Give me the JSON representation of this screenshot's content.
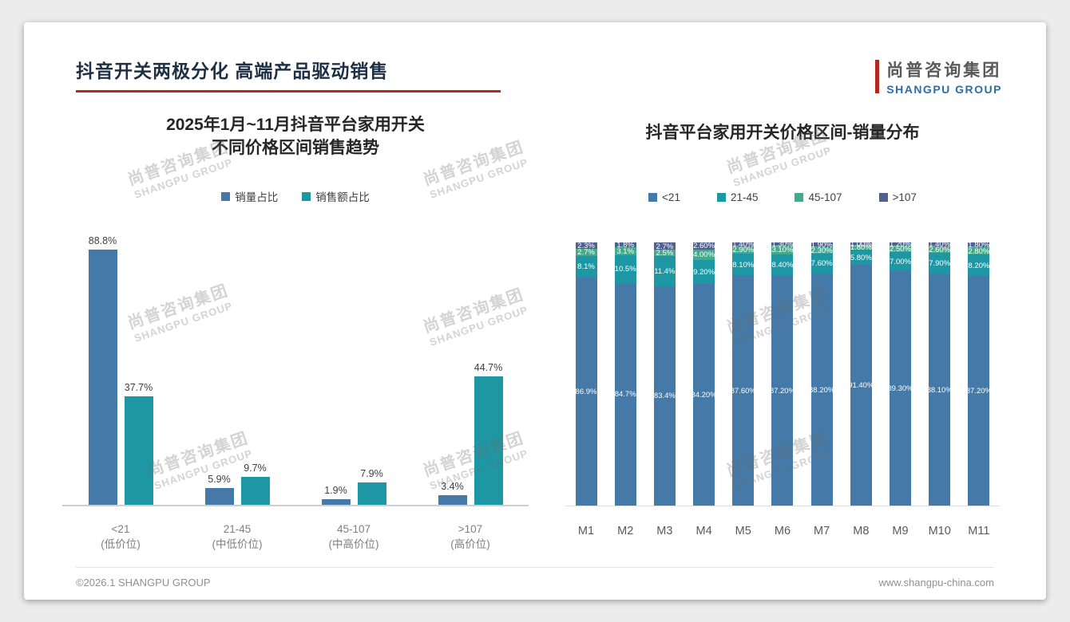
{
  "header": {
    "title": "抖音开关两极分化 高端产品驱动销售",
    "logo_cn": "尚普咨询集团",
    "logo_en": "SHANGPU GROUP"
  },
  "watermark": {
    "cn": "尚普咨询集团",
    "en": "SHANGPU GROUP"
  },
  "footer": {
    "left": "©2026.1 SHANGPU GROUP",
    "right": "www.shangpu-china.com"
  },
  "colors": {
    "accent_red": "#b02a1e",
    "logo_blue": "#2e6da4",
    "series_blue": "#4579a7",
    "series_teal": "#1e97a4",
    "series_green": "#45a98c",
    "series_navy": "#50618f"
  },
  "chart_data": [
    {
      "type": "bar",
      "title": "2025年1月~11月抖音平台家用开关 不同价格区间销售趋势",
      "title_line1": "2025年1月~11月抖音平台家用开关",
      "title_line2": "不同价格区间销售趋势",
      "xlabel": "",
      "ylabel": "",
      "ylim": [
        0,
        100
      ],
      "grid": false,
      "legend_position": "top",
      "categories": [
        {
          "line1": "<21",
          "line2": "(低价位)"
        },
        {
          "line1": "21-45",
          "line2": "(中低价位)"
        },
        {
          "line1": "45-107",
          "line2": "(中高价位)"
        },
        {
          "line1": ">107",
          "line2": "(高价位)"
        }
      ],
      "series": [
        {
          "name": "销量占比",
          "color": "#4579a7",
          "values": [
            88.8,
            5.9,
            1.9,
            3.4
          ],
          "labels": [
            "88.8%",
            "5.9%",
            "1.9%",
            "3.4%"
          ]
        },
        {
          "name": "销售额占比",
          "color": "#1e97a4",
          "values": [
            37.7,
            9.7,
            7.9,
            44.7
          ],
          "labels": [
            "37.7%",
            "9.7%",
            "7.9%",
            "44.7%"
          ]
        }
      ]
    },
    {
      "type": "bar",
      "subtype": "stacked-100",
      "title": "抖音平台家用开关价格区间-销量分布",
      "xlabel": "",
      "ylabel": "",
      "ylim": [
        0,
        100
      ],
      "grid": false,
      "legend_position": "top",
      "categories": [
        "M1",
        "M2",
        "M3",
        "M4",
        "M5",
        "M6",
        "M7",
        "M8",
        "M9",
        "M10",
        "M11"
      ],
      "series": [
        {
          "name": "<21",
          "color": "#4579a7",
          "values": [
            86.9,
            84.7,
            83.4,
            84.2,
            87.6,
            87.2,
            88.2,
            91.4,
            89.3,
            88.1,
            87.2
          ],
          "labels": [
            "86.9%",
            "84.7%",
            "83.4%",
            "84.20%",
            "87.60%",
            "87.20%",
            "88.20%",
            "91.40%",
            "89.30%",
            "88.10%",
            "87.20%"
          ]
        },
        {
          "name": "21-45",
          "color": "#1e97a4",
          "values": [
            8.1,
            10.5,
            11.4,
            9.2,
            8.1,
            8.4,
            7.6,
            5.8,
            7.0,
            7.9,
            8.2
          ],
          "labels": [
            "8.1%",
            "10.5%",
            "11.4%",
            "9.20%",
            "8.10%",
            "8.40%",
            "7.60%",
            "5.80%",
            "7.00%",
            "7.90%",
            "8.20%"
          ]
        },
        {
          "name": "45-107",
          "color": "#45a98c",
          "values": [
            2.7,
            3.1,
            2.5,
            4.0,
            2.9,
            3.1,
            2.3,
            1.8,
            2.5,
            2.6,
            2.8
          ],
          "labels": [
            "2.7%",
            "3.1%",
            "2.5%",
            "4.00%",
            "2.90%",
            "3.10%",
            "2.30%",
            "1.80%",
            "2.50%",
            "2.60%",
            "2.80%"
          ]
        },
        {
          "name": ">107",
          "color": "#50618f",
          "values": [
            2.3,
            1.8,
            2.7,
            2.6,
            1.4,
            1.3,
            1.9,
            1.0,
            1.2,
            1.4,
            1.8
          ],
          "labels": [
            "2.3%",
            "1.8%",
            "2.7%",
            "2.60%",
            "1.40%",
            "1.30%",
            "1.90%",
            "1.00%",
            "1.20%",
            "1.40%",
            "1.80%"
          ]
        }
      ]
    }
  ]
}
